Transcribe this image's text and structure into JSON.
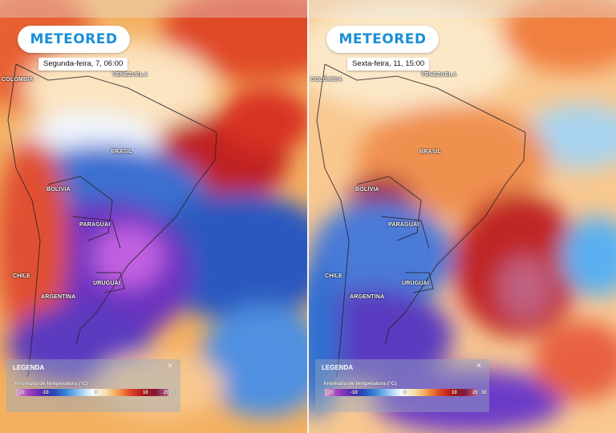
{
  "brand": {
    "logo_text": "METEORED"
  },
  "panels": [
    {
      "date": "Segunda-feira, 7, 06:00",
      "labels": [
        "COLÔMBIA",
        "VENEZUELA",
        "BRASIL",
        "BOLÍVIA",
        "PARAGUAI",
        "URUGUAI",
        "ARGENTINA",
        "CHILE"
      ]
    },
    {
      "date": "Sexta-feira, 11, 15:00",
      "labels": [
        "COLÔMBIA",
        "VENEZUELA",
        "BRASIL",
        "BOLÍVIA",
        "PARAGUAI",
        "URUGUAI",
        "ARGENTINA",
        "CHILE"
      ]
    }
  ],
  "legend": {
    "title": "LEGENDA",
    "close": "×",
    "subtitle": "Anomalia de temperatura (°C)",
    "ticks": [
      "-20",
      "-10",
      "0",
      "10",
      "20",
      "30"
    ],
    "colors": [
      "#e8a8d8",
      "#a040c0",
      "#5a2ab0",
      "#2848b8",
      "#3a88d8",
      "#90c8f0",
      "#f4f8ff",
      "#f8e0b0",
      "#f4a050",
      "#e04828",
      "#b01818",
      "#801838",
      "#c06888"
    ]
  }
}
